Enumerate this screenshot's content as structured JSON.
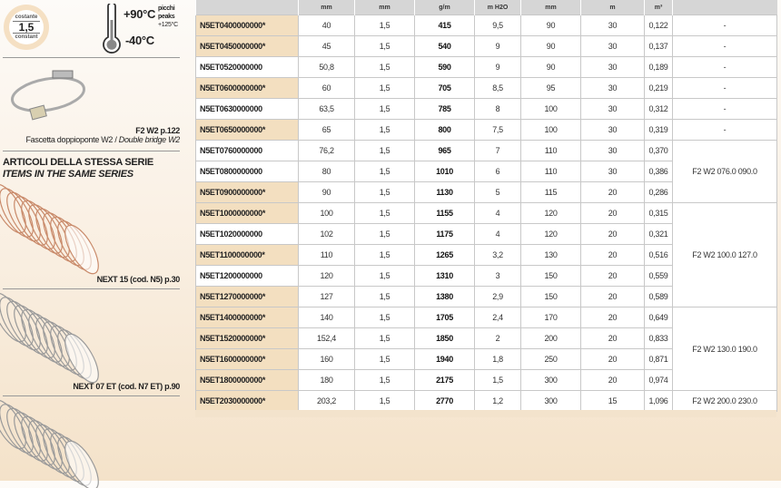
{
  "sidebar": {
    "thickness_badge": {
      "top": "costante",
      "value": "1,5",
      "bottom": "constant"
    },
    "temperature": {
      "max": "+90°C",
      "min": "-40°C",
      "peaks_it": "picchi",
      "peaks_en": "peaks",
      "peaks_value": "+125°C"
    },
    "accessory": {
      "code": "F2 W2 p.122",
      "name_it": "Fascetta doppioponte W2",
      "separator": " / ",
      "name_en": "Double bridge W2"
    },
    "series_title_it": "ARTICOLI DELLA STESSA SERIE",
    "series_title_en": "ITEMS IN THE SAME SERIES",
    "related": [
      {
        "label": "NEXT 15 (cod. N5) p.30",
        "spiral_color": "#c98a6a"
      },
      {
        "label": "NEXT 07 ET (cod. N7 ET) p.90",
        "spiral_color": "#9a9a9a"
      },
      {
        "label": "",
        "spiral_color": "#9a9a9a"
      }
    ]
  },
  "table": {
    "headers": [
      "",
      "mm",
      "mm",
      "g/m",
      "m H2O",
      "mm",
      "m",
      "m³",
      ""
    ],
    "highlight_color": "#f3dfc0",
    "rows": [
      {
        "code": "N5ET0400000000*",
        "star": true,
        "cells": [
          "40",
          "1,5",
          "415",
          "9,5",
          "90",
          "30",
          "0,122"
        ]
      },
      {
        "code": "N5ET0450000000*",
        "star": true,
        "cells": [
          "45",
          "1,5",
          "540",
          "9",
          "90",
          "30",
          "0,137"
        ]
      },
      {
        "code": "N5ET0520000000",
        "star": false,
        "cells": [
          "50,8",
          "1,5",
          "590",
          "9",
          "90",
          "30",
          "0,189"
        ]
      },
      {
        "code": "N5ET0600000000*",
        "star": true,
        "cells": [
          "60",
          "1,5",
          "705",
          "8,5",
          "95",
          "30",
          "0,219"
        ]
      },
      {
        "code": "N5ET0630000000",
        "star": false,
        "cells": [
          "63,5",
          "1,5",
          "785",
          "8",
          "100",
          "30",
          "0,312"
        ]
      },
      {
        "code": "N5ET0650000000*",
        "star": true,
        "cells": [
          "65",
          "1,5",
          "800",
          "7,5",
          "100",
          "30",
          "0,319"
        ]
      },
      {
        "code": "N5ET0760000000",
        "star": false,
        "cells": [
          "76,2",
          "1,5",
          "965",
          "7",
          "110",
          "30",
          "0,370"
        ]
      },
      {
        "code": "N5ET0800000000",
        "star": false,
        "cells": [
          "80",
          "1,5",
          "1010",
          "6",
          "110",
          "30",
          "0,386"
        ]
      },
      {
        "code": "N5ET0900000000*",
        "star": true,
        "cells": [
          "90",
          "1,5",
          "1130",
          "5",
          "115",
          "20",
          "0,286"
        ]
      },
      {
        "code": "N5ET1000000000*",
        "star": true,
        "cells": [
          "100",
          "1,5",
          "1155",
          "4",
          "120",
          "20",
          "0,315"
        ]
      },
      {
        "code": "N5ET1020000000",
        "star": false,
        "cells": [
          "102",
          "1,5",
          "1175",
          "4",
          "120",
          "20",
          "0,321"
        ]
      },
      {
        "code": "N5ET1100000000*",
        "star": true,
        "cells": [
          "110",
          "1,5",
          "1265",
          "3,2",
          "130",
          "20",
          "0,516"
        ]
      },
      {
        "code": "N5ET1200000000",
        "star": false,
        "cells": [
          "120",
          "1,5",
          "1310",
          "3",
          "150",
          "20",
          "0,559"
        ]
      },
      {
        "code": "N5ET1270000000*",
        "star": true,
        "cells": [
          "127",
          "1,5",
          "1380",
          "2,9",
          "150",
          "20",
          "0,589"
        ]
      },
      {
        "code": "N5ET1400000000*",
        "star": true,
        "cells": [
          "140",
          "1,5",
          "1705",
          "2,4",
          "170",
          "20",
          "0,649"
        ]
      },
      {
        "code": "N5ET1520000000*",
        "star": true,
        "cells": [
          "152,4",
          "1,5",
          "1850",
          "2",
          "200",
          "20",
          "0,833"
        ]
      },
      {
        "code": "N5ET1600000000*",
        "star": true,
        "cells": [
          "160",
          "1,5",
          "1940",
          "1,8",
          "250",
          "20",
          "0,871"
        ]
      },
      {
        "code": "N5ET1800000000*",
        "star": true,
        "cells": [
          "180",
          "1,5",
          "2175",
          "1,5",
          "300",
          "20",
          "0,974"
        ]
      },
      {
        "code": "N5ET2030000000*",
        "star": true,
        "cells": [
          "203,2",
          "1,5",
          "2770",
          "1,2",
          "300",
          "15",
          "1,096"
        ]
      }
    ],
    "clamps": [
      {
        "label": "-",
        "rows": 1
      },
      {
        "label": "-",
        "rows": 1
      },
      {
        "label": "-",
        "rows": 1
      },
      {
        "label": "-",
        "rows": 1
      },
      {
        "label": "-",
        "rows": 1
      },
      {
        "label": "-",
        "rows": 1
      },
      {
        "label": "F2 W2 076.0 090.0",
        "rows": 3
      },
      {
        "label": "F2 W2 100.0 127.0",
        "rows": 5
      },
      {
        "label": "F2 W2 130.0 190.0",
        "rows": 4
      },
      {
        "label": "F2 W2 200.0 230.0",
        "rows": 1
      }
    ]
  }
}
